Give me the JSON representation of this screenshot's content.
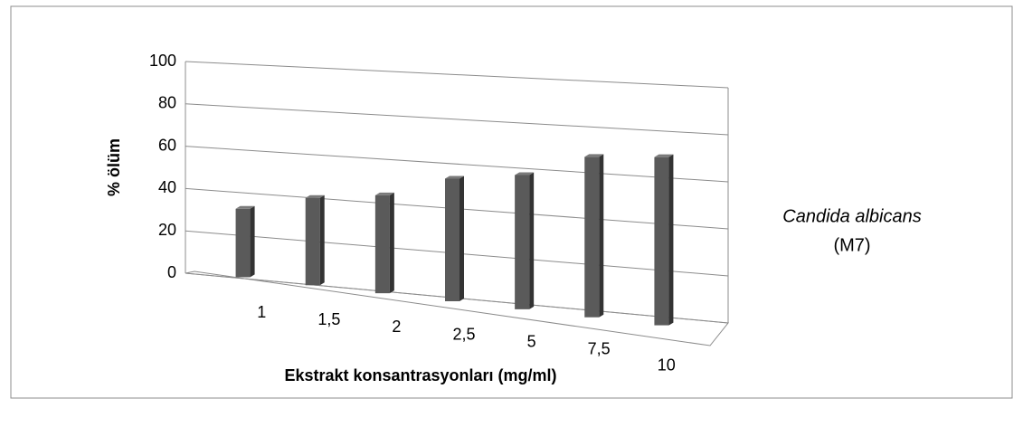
{
  "chart_data": {
    "type": "bar",
    "x_label": "Ekstrakt konsantrasyonları (mg/ml)",
    "y_label": "% ölüm",
    "categories": [
      "1",
      "1,5",
      "2",
      "2,5",
      "5",
      "7,5",
      "10"
    ],
    "values": [
      32,
      40,
      44,
      54,
      58,
      68,
      70
    ],
    "color": "#5a5a5a",
    "series_label": [
      "Candida albicans",
      "(M7)"
    ],
    "ylim": [
      0,
      100
    ],
    "yticks": [
      0,
      20,
      40,
      60,
      80,
      100
    ],
    "grid": true
  }
}
